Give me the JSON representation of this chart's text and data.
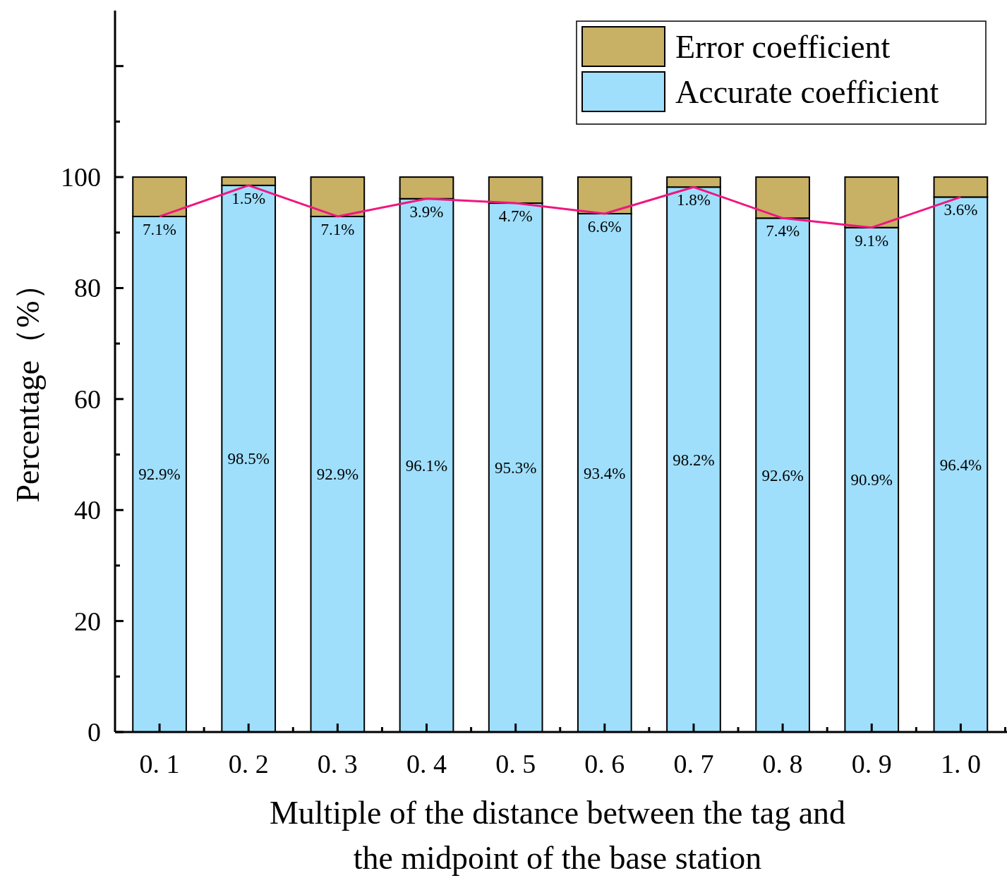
{
  "chart_data": {
    "type": "bar",
    "stacked": true,
    "xlabel": "Multiple of the distance between the tag and\nthe midpoint of the base station",
    "ylabel": "Percentage（%）",
    "categories": [
      "0. 1",
      "0. 2",
      "0. 3",
      "0. 4",
      "0. 5",
      "0. 6",
      "0. 7",
      "0. 8",
      "0. 9",
      "1. 0"
    ],
    "series": [
      {
        "name": "Accurate coefficient",
        "color": "#9fdffc",
        "values": [
          92.9,
          98.5,
          92.9,
          96.1,
          95.3,
          93.4,
          98.2,
          92.6,
          90.9,
          96.4
        ],
        "value_labels": [
          "92.9%",
          "98.5%",
          "92.9%",
          "96.1%",
          "95.3%",
          "93.4%",
          "98.2%",
          "92.6%",
          "90.9%",
          "96.4%"
        ]
      },
      {
        "name": "Error coefficient",
        "color": "#c8b064",
        "values": [
          7.1,
          1.5,
          7.1,
          3.9,
          4.7,
          6.6,
          1.8,
          7.4,
          9.1,
          3.6
        ],
        "value_labels": [
          "7.1%",
          "1.5%",
          "7.1%",
          "3.9%",
          "4.7%",
          "6.6%",
          "1.8%",
          "7.4%",
          "9.1%",
          "3.6%"
        ]
      },
      {
        "type": "line",
        "color": "#f0167f",
        "x": [
          "0. 1",
          "0. 2",
          "0. 3",
          "0. 4",
          "0. 5",
          "0. 6",
          "0. 7",
          "0. 8",
          "0. 9",
          "1. 0"
        ],
        "values": [
          92.9,
          98.5,
          92.9,
          96.1,
          95.3,
          93.4,
          98.2,
          92.6,
          90.9,
          96.4
        ]
      }
    ],
    "ylim": [
      0,
      130
    ],
    "yticks": [
      0,
      20,
      40,
      60,
      80,
      100,
      {
        "value": 120,
        "label": null
      }
    ],
    "legend": "top right",
    "grid": false
  }
}
